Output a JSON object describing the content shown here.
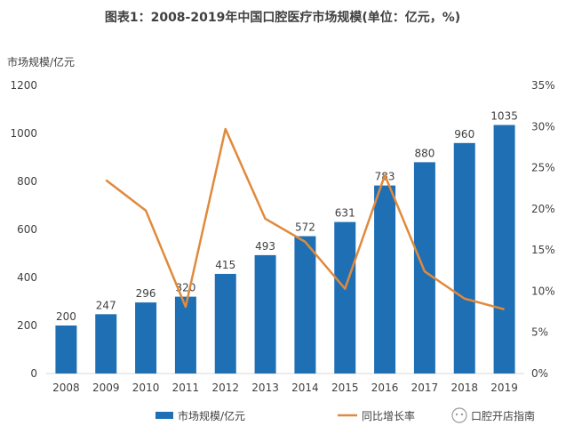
{
  "chart_data": {
    "type": "bar+line",
    "title": "图表1：2008-2019年中国口腔医疗市场规模(单位：亿元，%)",
    "ylabel_left": "市场规模/亿元",
    "categories": [
      "2008",
      "2009",
      "2010",
      "2011",
      "2012",
      "2013",
      "2014",
      "2015",
      "2016",
      "2017",
      "2018",
      "2019"
    ],
    "series": [
      {
        "name": "市场规模/亿元",
        "type": "bar",
        "axis": "left",
        "color": "#1f6fb5",
        "values": [
          200,
          247,
          296,
          320,
          415,
          493,
          572,
          631,
          783,
          880,
          960,
          1035
        ]
      },
      {
        "name": "同比增长率",
        "type": "line",
        "axis": "right",
        "color": "#e08a3c",
        "values": [
          null,
          23.5,
          19.8,
          8.1,
          29.7,
          18.8,
          16.0,
          10.3,
          24.1,
          12.4,
          9.1,
          7.8
        ]
      }
    ],
    "ylim_left": [
      0,
      1200
    ],
    "yticks_left": [
      0,
      200,
      400,
      600,
      800,
      1000,
      1200
    ],
    "ylim_right": [
      0,
      35
    ],
    "yticks_right": [
      "0%",
      "5%",
      "10%",
      "15%",
      "20%",
      "25%",
      "30%",
      "35%"
    ],
    "grid": false,
    "legend": "bottom"
  },
  "watermark_label": "口腔开店指南"
}
